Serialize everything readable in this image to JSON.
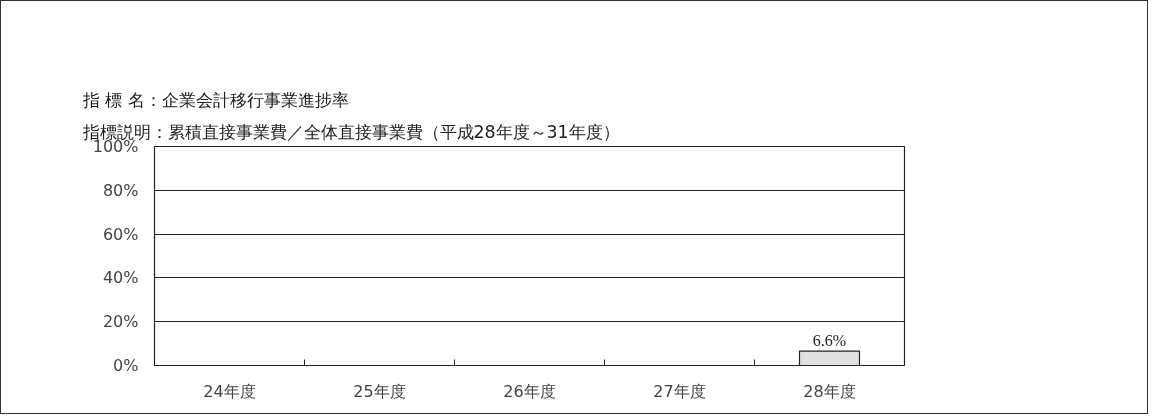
{
  "chart_data": {
    "type": "bar",
    "title": "指 標 名：企業会計移行事業進捗率",
    "subtitle": "指標説明：累積直接事業費／全体直接事業費（平成28年度～31年度）",
    "categories": [
      "24年度",
      "25年度",
      "26年度",
      "27年度",
      "28年度"
    ],
    "series": [
      {
        "color": "#e0e0e0",
        "values": [
          null,
          null,
          null,
          null,
          6.6
        ]
      }
    ],
    "value_labels": [
      null,
      null,
      null,
      null,
      "6.6%"
    ],
    "ylim": [
      0,
      100
    ],
    "yticks": [
      {
        "value": 0,
        "label": "0%"
      },
      {
        "value": 20,
        "label": "20%"
      },
      {
        "value": 40,
        "label": "40%"
      },
      {
        "value": 60,
        "label": "60%"
      },
      {
        "value": 80,
        "label": "80%"
      },
      {
        "value": 100,
        "label": "100%"
      }
    ],
    "grid": "y"
  }
}
